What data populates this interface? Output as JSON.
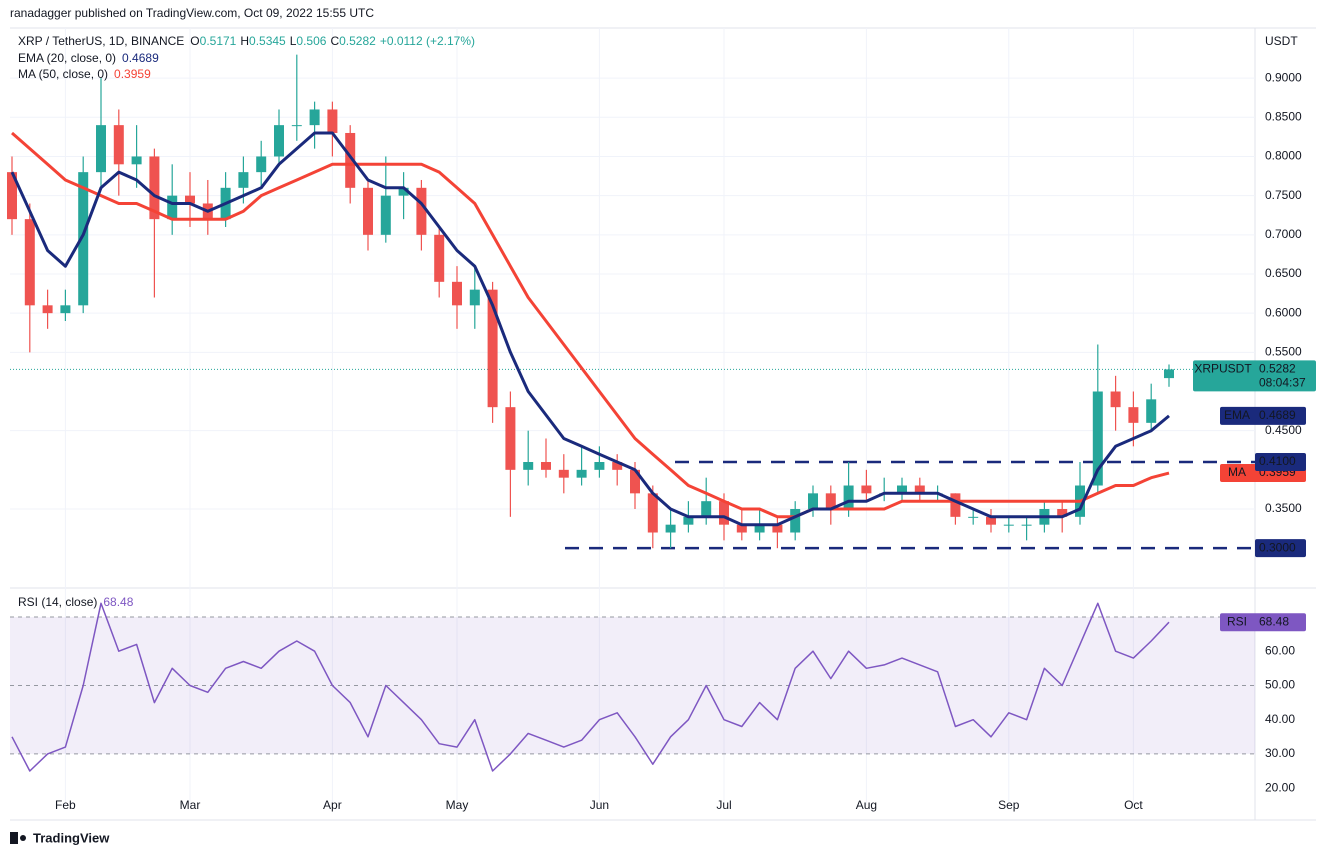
{
  "chart_data": {
    "type": "candlestick",
    "header": "ranadagger published on TradingView.com, Oct 09, 2022 15:55 UTC",
    "title": "XRP / TetherUS, 1D, BINANCE",
    "ohlc_letters": [
      "O",
      "H",
      "L",
      "C"
    ],
    "change": "+0.0112 (+2.17%)",
    "y_axis_label": "USDT",
    "up_color": "#26a69a",
    "down_color": "#ef5350",
    "categories": [
      null,
      null,
      null,
      "Feb",
      null,
      null,
      null,
      null,
      null,
      null,
      "Mar",
      null,
      null,
      null,
      null,
      null,
      null,
      null,
      "Apr",
      null,
      null,
      null,
      null,
      null,
      null,
      "May",
      null,
      null,
      null,
      null,
      null,
      null,
      null,
      "Jun",
      null,
      null,
      null,
      null,
      null,
      null,
      "Jul",
      null,
      null,
      null,
      null,
      null,
      null,
      null,
      "Aug",
      null,
      null,
      null,
      null,
      null,
      null,
      null,
      "Sep",
      null,
      null,
      null,
      null,
      null,
      null,
      "Oct",
      null,
      null
    ],
    "open": [
      0.78,
      0.72,
      0.61,
      0.6,
      0.61,
      0.78,
      0.84,
      0.79,
      0.8,
      0.72,
      0.75,
      0.74,
      0.72,
      0.76,
      0.78,
      0.8,
      0.84,
      0.84,
      0.86,
      0.83,
      0.76,
      0.7,
      0.75,
      0.76,
      0.7,
      0.64,
      0.61,
      0.63,
      0.48,
      0.4,
      0.41,
      0.4,
      0.39,
      0.4,
      0.41,
      0.4,
      0.37,
      0.32,
      0.33,
      0.34,
      0.36,
      0.33,
      0.32,
      0.33,
      0.32,
      0.35,
      0.37,
      0.35,
      0.38,
      0.37,
      0.37,
      0.38,
      0.37,
      0.37,
      0.34,
      0.34,
      0.33,
      0.33,
      0.33,
      0.35,
      0.34,
      0.38,
      0.5,
      0.48,
      0.46,
      0.5171
    ],
    "high": [
      0.8,
      0.74,
      0.63,
      0.63,
      0.8,
      0.9,
      0.86,
      0.84,
      0.81,
      0.79,
      0.78,
      0.77,
      0.78,
      0.8,
      0.82,
      0.86,
      0.93,
      0.87,
      0.87,
      0.84,
      0.77,
      0.8,
      0.78,
      0.77,
      0.71,
      0.66,
      0.66,
      0.64,
      0.5,
      0.45,
      0.44,
      0.42,
      0.43,
      0.43,
      0.42,
      0.41,
      0.38,
      0.35,
      0.36,
      0.39,
      0.37,
      0.35,
      0.35,
      0.34,
      0.36,
      0.38,
      0.38,
      0.41,
      0.4,
      0.39,
      0.39,
      0.39,
      0.38,
      0.37,
      0.35,
      0.35,
      0.34,
      0.34,
      0.36,
      0.36,
      0.41,
      0.56,
      0.52,
      0.5,
      0.51,
      0.5345
    ],
    "low": [
      0.7,
      0.55,
      0.58,
      0.59,
      0.6,
      0.76,
      0.75,
      0.76,
      0.62,
      0.7,
      0.71,
      0.7,
      0.71,
      0.74,
      0.76,
      0.79,
      0.82,
      0.81,
      0.8,
      0.74,
      0.68,
      0.69,
      0.72,
      0.68,
      0.62,
      0.58,
      0.58,
      0.46,
      0.34,
      0.38,
      0.39,
      0.37,
      0.38,
      0.39,
      0.38,
      0.35,
      0.3,
      0.3,
      0.32,
      0.33,
      0.31,
      0.31,
      0.31,
      0.3,
      0.31,
      0.34,
      0.33,
      0.34,
      0.36,
      0.36,
      0.36,
      0.36,
      0.36,
      0.33,
      0.33,
      0.32,
      0.32,
      0.31,
      0.32,
      0.32,
      0.33,
      0.37,
      0.45,
      0.43,
      0.45,
      0.506
    ],
    "close": [
      0.72,
      0.61,
      0.6,
      0.61,
      0.78,
      0.84,
      0.79,
      0.8,
      0.72,
      0.75,
      0.74,
      0.72,
      0.76,
      0.78,
      0.8,
      0.84,
      0.84,
      0.86,
      0.83,
      0.76,
      0.7,
      0.75,
      0.76,
      0.7,
      0.64,
      0.61,
      0.63,
      0.48,
      0.4,
      0.41,
      0.4,
      0.39,
      0.4,
      0.41,
      0.4,
      0.37,
      0.32,
      0.33,
      0.34,
      0.36,
      0.33,
      0.32,
      0.33,
      0.32,
      0.35,
      0.37,
      0.35,
      0.38,
      0.37,
      0.37,
      0.38,
      0.37,
      0.37,
      0.34,
      0.34,
      0.33,
      0.33,
      0.33,
      0.35,
      0.34,
      0.38,
      0.5,
      0.48,
      0.46,
      0.49,
      0.5282
    ],
    "ylim": [
      0.253,
      0.964
    ],
    "yticks": [
      {
        "value": 0.35,
        "label": "0.3500"
      },
      {
        "value": 0.45,
        "label": "0.4500"
      },
      {
        "value": 0.55,
        "label": "0.5500"
      },
      {
        "value": 0.6,
        "label": "0.6000"
      },
      {
        "value": 0.65,
        "label": "0.6500"
      },
      {
        "value": 0.7,
        "label": "0.7000"
      },
      {
        "value": 0.75,
        "label": "0.7500"
      },
      {
        "value": 0.8,
        "label": "0.8000"
      },
      {
        "value": 0.85,
        "label": "0.8500"
      },
      {
        "value": 0.9,
        "label": "0.9000"
      }
    ],
    "last_tag": "XRPUSDT",
    "countdown": "08:04:37",
    "series": [
      {
        "name": "MA (50, close, 0)",
        "tag": "MA",
        "color": "#f44336",
        "values": [
          0.83,
          0.81,
          0.79,
          0.77,
          0.76,
          0.75,
          0.74,
          0.74,
          0.73,
          0.72,
          0.72,
          0.72,
          0.72,
          0.73,
          0.75,
          0.76,
          0.77,
          0.78,
          0.79,
          0.79,
          0.79,
          0.79,
          0.79,
          0.79,
          0.78,
          0.76,
          0.74,
          0.7,
          0.66,
          0.62,
          0.59,
          0.56,
          0.53,
          0.5,
          0.47,
          0.44,
          0.42,
          0.4,
          0.38,
          0.37,
          0.36,
          0.35,
          0.35,
          0.34,
          0.34,
          0.35,
          0.35,
          0.35,
          0.35,
          0.35,
          0.36,
          0.36,
          0.36,
          0.36,
          0.36,
          0.36,
          0.36,
          0.36,
          0.36,
          0.36,
          0.36,
          0.37,
          0.38,
          0.38,
          0.39,
          0.3959
        ]
      },
      {
        "name": "EMA (20, close, 0)",
        "tag": "EMA",
        "color": "#1a2a7c",
        "values": [
          0.78,
          0.73,
          0.68,
          0.66,
          0.7,
          0.76,
          0.78,
          0.77,
          0.75,
          0.74,
          0.74,
          0.73,
          0.74,
          0.75,
          0.76,
          0.79,
          0.81,
          0.83,
          0.83,
          0.8,
          0.77,
          0.76,
          0.76,
          0.74,
          0.71,
          0.68,
          0.66,
          0.61,
          0.55,
          0.5,
          0.47,
          0.44,
          0.43,
          0.42,
          0.41,
          0.4,
          0.37,
          0.35,
          0.34,
          0.34,
          0.34,
          0.33,
          0.33,
          0.33,
          0.34,
          0.35,
          0.35,
          0.36,
          0.36,
          0.37,
          0.37,
          0.37,
          0.37,
          0.36,
          0.35,
          0.34,
          0.34,
          0.34,
          0.34,
          0.34,
          0.35,
          0.4,
          0.43,
          0.44,
          0.45,
          0.4689
        ]
      }
    ],
    "levels": [
      {
        "value": 0.41,
        "label": "0.4100"
      },
      {
        "value": 0.3,
        "label": "0.3000"
      }
    ],
    "level_color": "#1a2a7c",
    "rsi": {
      "name": "RSI (14, close)",
      "tag": "RSI",
      "color": "#7e57c2",
      "values": [
        35,
        25,
        30,
        32,
        50,
        74,
        60,
        62,
        45,
        55,
        50,
        48,
        55,
        57,
        55,
        60,
        63,
        60,
        50,
        45,
        35,
        50,
        45,
        40,
        33,
        32,
        40,
        25,
        30,
        36,
        34,
        32,
        34,
        40,
        42,
        35,
        27,
        35,
        40,
        50,
        40,
        38,
        45,
        40,
        55,
        60,
        52,
        60,
        55,
        56,
        58,
        56,
        54,
        38,
        40,
        35,
        42,
        40,
        55,
        50,
        62,
        74,
        60,
        58,
        63,
        68.48
      ],
      "ylim": [
        18,
        77.3
      ],
      "yticks": [
        {
          "value": 20,
          "label": "20.00"
        },
        {
          "value": 30,
          "label": "30.00"
        },
        {
          "value": 40,
          "label": "40.00"
        },
        {
          "value": 50,
          "label": "50.00"
        },
        {
          "value": 60,
          "label": "60.00"
        }
      ],
      "band": [
        30,
        70
      ],
      "guides": [
        70,
        50,
        30
      ]
    },
    "footer": "TradingView"
  }
}
